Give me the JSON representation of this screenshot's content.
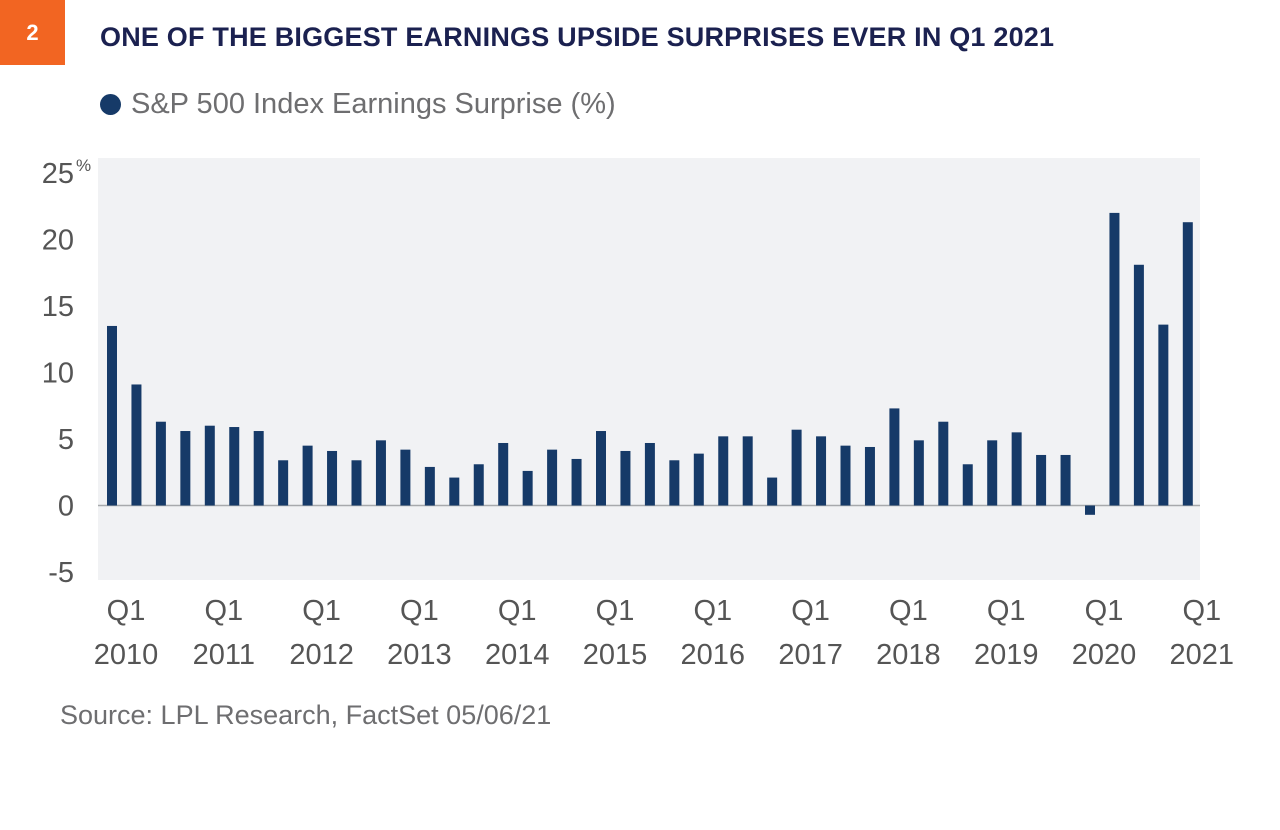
{
  "badge": "2",
  "title": "ONE OF THE BIGGEST EARNINGS UPSIDE SURPRISES EVER IN Q1 2021",
  "source": "Source: LPL Research, FactSet  05/06/21",
  "chart_data": {
    "type": "bar",
    "title": "ONE OF THE BIGGEST EARNINGS UPSIDE SURPRISES EVER IN Q1 2021",
    "legend": "top-left",
    "series": [
      {
        "name": "S&P 500 Index Earnings Surprise (%)",
        "color": "#163a68",
        "values": [
          13.5,
          9.1,
          6.3,
          5.6,
          6.0,
          5.9,
          5.6,
          3.4,
          4.5,
          4.1,
          3.4,
          4.9,
          4.2,
          2.9,
          2.1,
          3.1,
          4.7,
          2.6,
          4.2,
          3.5,
          5.6,
          4.1,
          4.7,
          3.4,
          3.9,
          5.2,
          5.2,
          2.1,
          5.7,
          5.2,
          4.5,
          4.4,
          7.3,
          4.9,
          6.3,
          3.1,
          4.9,
          5.5,
          3.8,
          3.8,
          -0.7,
          22.0,
          18.1,
          13.6,
          21.3
        ]
      }
    ],
    "first_quarter": "Q1 2010",
    "last_quarter": "Q1 2021",
    "x_tick_labels": [
      [
        "Q1",
        "2010"
      ],
      [
        "Q1",
        "2011"
      ],
      [
        "Q1",
        "2012"
      ],
      [
        "Q1",
        "2013"
      ],
      [
        "Q1",
        "2014"
      ],
      [
        "Q1",
        "2015"
      ],
      [
        "Q1",
        "2016"
      ],
      [
        "Q1",
        "2017"
      ],
      [
        "Q1",
        "2018"
      ],
      [
        "Q1",
        "2019"
      ],
      [
        "Q1",
        "2020"
      ],
      [
        "Q1",
        "2021"
      ]
    ],
    "y_ticks": [
      25,
      20,
      15,
      10,
      5,
      0,
      -5
    ],
    "y_tick_labels": [
      "25",
      "20",
      "15",
      "10",
      "5",
      "0",
      "-5"
    ],
    "y_unit": "%",
    "ylim": [
      -5.5,
      26
    ],
    "grid": false,
    "background": "#f1f2f4"
  }
}
